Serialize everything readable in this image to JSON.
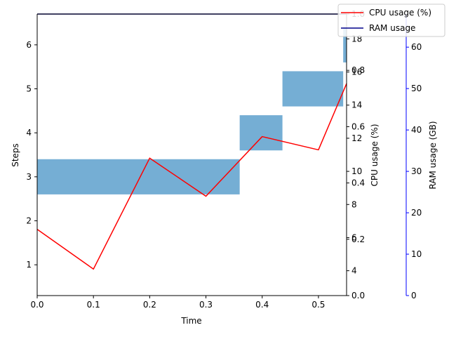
{
  "chart_data": {
    "type": "line",
    "title": "",
    "xlabel": "Time",
    "xlim": [
      0,
      0.55
    ],
    "x_ticks": [
      "0.0",
      "0.1",
      "0.2",
      "0.3",
      "0.4",
      "0.5"
    ],
    "axes": {
      "steps": {
        "label": "Steps",
        "ylim": [
          0.3,
          6.7
        ],
        "ticks": [
          "1",
          "2",
          "3",
          "4",
          "5",
          "6"
        ],
        "color": "#000000"
      },
      "cpu_inner": {
        "ylim": [
          0,
          1.0
        ],
        "ticks": [
          "0.0",
          "0.2",
          "0.4",
          "0.6",
          "0.8",
          "1.0"
        ],
        "color": "#000000"
      },
      "cpu": {
        "label": "CPU usage (%)",
        "ylim": [
          2.5,
          19.5
        ],
        "ticks": [
          "4",
          "6",
          "8",
          "10",
          "12",
          "14",
          "16",
          "18"
        ],
        "color": "#000000"
      },
      "ram": {
        "label": "RAM usage (GB)",
        "ylim": [
          0,
          68
        ],
        "ticks": [
          "0",
          "10",
          "20",
          "30",
          "40",
          "50",
          "60"
        ],
        "color": "#0000ff"
      }
    },
    "bars": {
      "axis": "steps",
      "color": "#75aed4",
      "items": [
        {
          "step": 3,
          "start": 0.0,
          "end": 0.36
        },
        {
          "step": 4,
          "start": 0.36,
          "end": 0.436
        },
        {
          "step": 5,
          "start": 0.436,
          "end": 0.544
        },
        {
          "step": 6,
          "start": 0.544,
          "end": 0.55
        }
      ]
    },
    "series": [
      {
        "name": "CPU usage (%)",
        "axis": "cpu",
        "color": "#ff0000",
        "x": [
          0.0,
          0.1,
          0.2,
          0.3,
          0.4,
          0.5,
          0.55
        ],
        "y": [
          6.5,
          4.1,
          10.8,
          8.5,
          12.1,
          11.3,
          15.3
        ]
      },
      {
        "name": "RAM usage",
        "axis": "ram",
        "color": "#00008b",
        "x": [
          0.0,
          0.55
        ],
        "y": [
          68,
          68
        ]
      }
    ],
    "legend": {
      "position": "top-right",
      "entries": [
        "CPU usage (%)",
        "RAM usage"
      ]
    },
    "grid": false
  }
}
